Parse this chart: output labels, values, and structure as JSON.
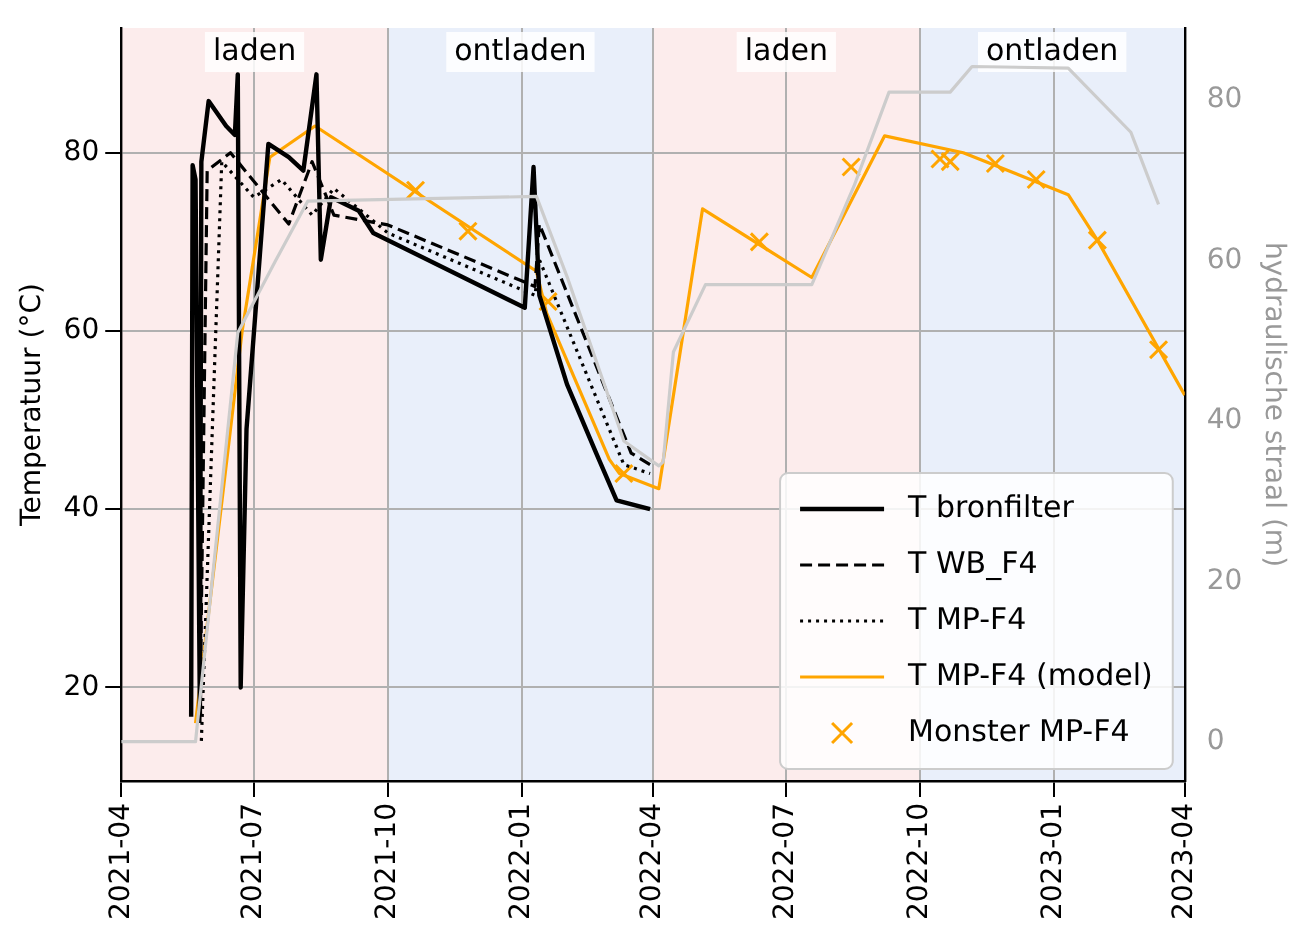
{
  "chart_data": {
    "type": "line",
    "ylabel": "Temperatuur (°C)",
    "y2label": "hydraulische straal (m)",
    "xlim": [
      "2021-04",
      "2023-04"
    ],
    "xticks": [
      "2021-04",
      "2021-07",
      "2021-10",
      "2022-01",
      "2022-04",
      "2022-07",
      "2022-10",
      "2023-01",
      "2023-04"
    ],
    "ylim": [
      9.5,
      94
    ],
    "yticks": [
      20,
      40,
      60,
      80
    ],
    "y2lim": [
      -4.9,
      89
    ],
    "y2ticks": [
      0,
      20,
      40,
      60,
      80
    ],
    "grid": true,
    "legend": "bottom right",
    "bands": [
      {
        "axis": "x",
        "from": "2021-04",
        "to": "2021-10",
        "label": "laden",
        "color": "#fcecec"
      },
      {
        "axis": "x",
        "from": "2021-10",
        "to": "2022-04",
        "label": "ontladen",
        "color": "#e9effa"
      },
      {
        "axis": "x",
        "from": "2022-04",
        "to": "2022-10",
        "label": "laden",
        "color": "#fcecec"
      },
      {
        "axis": "x",
        "from": "2022-10",
        "to": "2023-04",
        "label": "ontladen",
        "color": "#e9effa"
      }
    ],
    "series": [
      {
        "name": null,
        "color": "#cccccc",
        "axis": "y2",
        "x": [
          "2021-04-01",
          "2021-05-22",
          "2021-06-20",
          "2021-07-16",
          "2021-08-07",
          "2022-01-11",
          "2022-02-01",
          "2022-03-12",
          "2022-04-05",
          "2022-04-08",
          "2022-04-15",
          "2022-05-07",
          "2022-07-19",
          "2022-08-17",
          "2022-09-10",
          "2022-10-22",
          "2022-11-06",
          "2023-01-11",
          "2023-02-23",
          "2023-03-14"
        ],
        "values": [
          0,
          0,
          51,
          60,
          67.4,
          68,
          58,
          37.5,
          34.4,
          34.9,
          48.6,
          57,
          57,
          69.3,
          81,
          81,
          84.2,
          84,
          76,
          67
        ]
      },
      {
        "name": "T bronfilter",
        "color": "#000000",
        "x": [
          "2021-05-19",
          "2021-05-20",
          "2021-05-22",
          "2021-05-25",
          "2021-05-26",
          "2021-05-31",
          "2021-06-12",
          "2021-06-18",
          "2021-06-20",
          "2021-06-22",
          "2021-06-26",
          "2021-07-11",
          "2021-07-25",
          "2021-08-04",
          "2021-08-13",
          "2021-08-16",
          "2021-08-23",
          "2021-09-11",
          "2021-09-21",
          "2022-01-03",
          "2022-01-09",
          "2022-01-13",
          "2022-02-01",
          "2022-02-21",
          "2022-03-07",
          "2022-03-30"
        ],
        "values": [
          16.7,
          78.6,
          77,
          17,
          79,
          85.8,
          83,
          82,
          88.8,
          20,
          49,
          81,
          79.5,
          78,
          88.8,
          68,
          75,
          73.5,
          71,
          62.6,
          78.4,
          64,
          54,
          46.3,
          41,
          40
        ]
      },
      {
        "name": "T WB_F4",
        "color": "#000000",
        "line_style": "dashed",
        "x": [
          "2021-05-25",
          "2021-05-30",
          "2021-06-15",
          "2021-07-05",
          "2021-07-25",
          "2021-08-10",
          "2021-08-25",
          "2021-10-01",
          "2022-01-10",
          "2022-01-13",
          "2022-03-17",
          "2022-03-30"
        ],
        "values": [
          16,
          78,
          80,
          76,
          72,
          79,
          73,
          71.9,
          65,
          72,
          46.3,
          45
        ]
      },
      {
        "name": "T MP-F4",
        "color": "#000000",
        "line_style": "dotted",
        "x": [
          "2021-05-26",
          "2021-06-09",
          "2021-07-01",
          "2021-07-20",
          "2021-08-10",
          "2021-08-25",
          "2021-10-01",
          "2022-01-10",
          "2022-01-13",
          "2022-03-12",
          "2022-03-30"
        ],
        "values": [
          14,
          79,
          75,
          77,
          73,
          76,
          71,
          64,
          68,
          45,
          44
        ]
      },
      {
        "name": "T MP-F4 (model)",
        "color": "#ffa500",
        "x": [
          "2021-05-22",
          "2021-06-23",
          "2021-07-12",
          "2021-08-12",
          "2022-01-11",
          "2022-01-18",
          "2022-03-02",
          "2022-03-09",
          "2022-04-05",
          "2022-05-05",
          "2022-07-19",
          "2022-09-07",
          "2022-10-31",
          "2023-01-11",
          "2023-01-31",
          "2023-04-01"
        ],
        "values": [
          16,
          60,
          79.5,
          83,
          66.7,
          62,
          45.6,
          44,
          42.3,
          73.7,
          66,
          81.9,
          80,
          75.3,
          70.2,
          52.8
        ]
      },
      {
        "name": "Monster MP-F4",
        "color": "#ffa500",
        "type": "scatter",
        "marker": "cross",
        "x": [
          "2021-10-20",
          "2021-11-25",
          "2022-01-19",
          "2022-03-12",
          "2022-06-13",
          "2022-08-15",
          "2022-10-15",
          "2022-10-22",
          "2022-11-22",
          "2022-12-20",
          "2023-01-31",
          "2023-03-14"
        ],
        "values": [
          75.8,
          71.2,
          63.3,
          44,
          70,
          78.4,
          79.3,
          79,
          78.8,
          77,
          70.2,
          57.9
        ]
      }
    ]
  }
}
